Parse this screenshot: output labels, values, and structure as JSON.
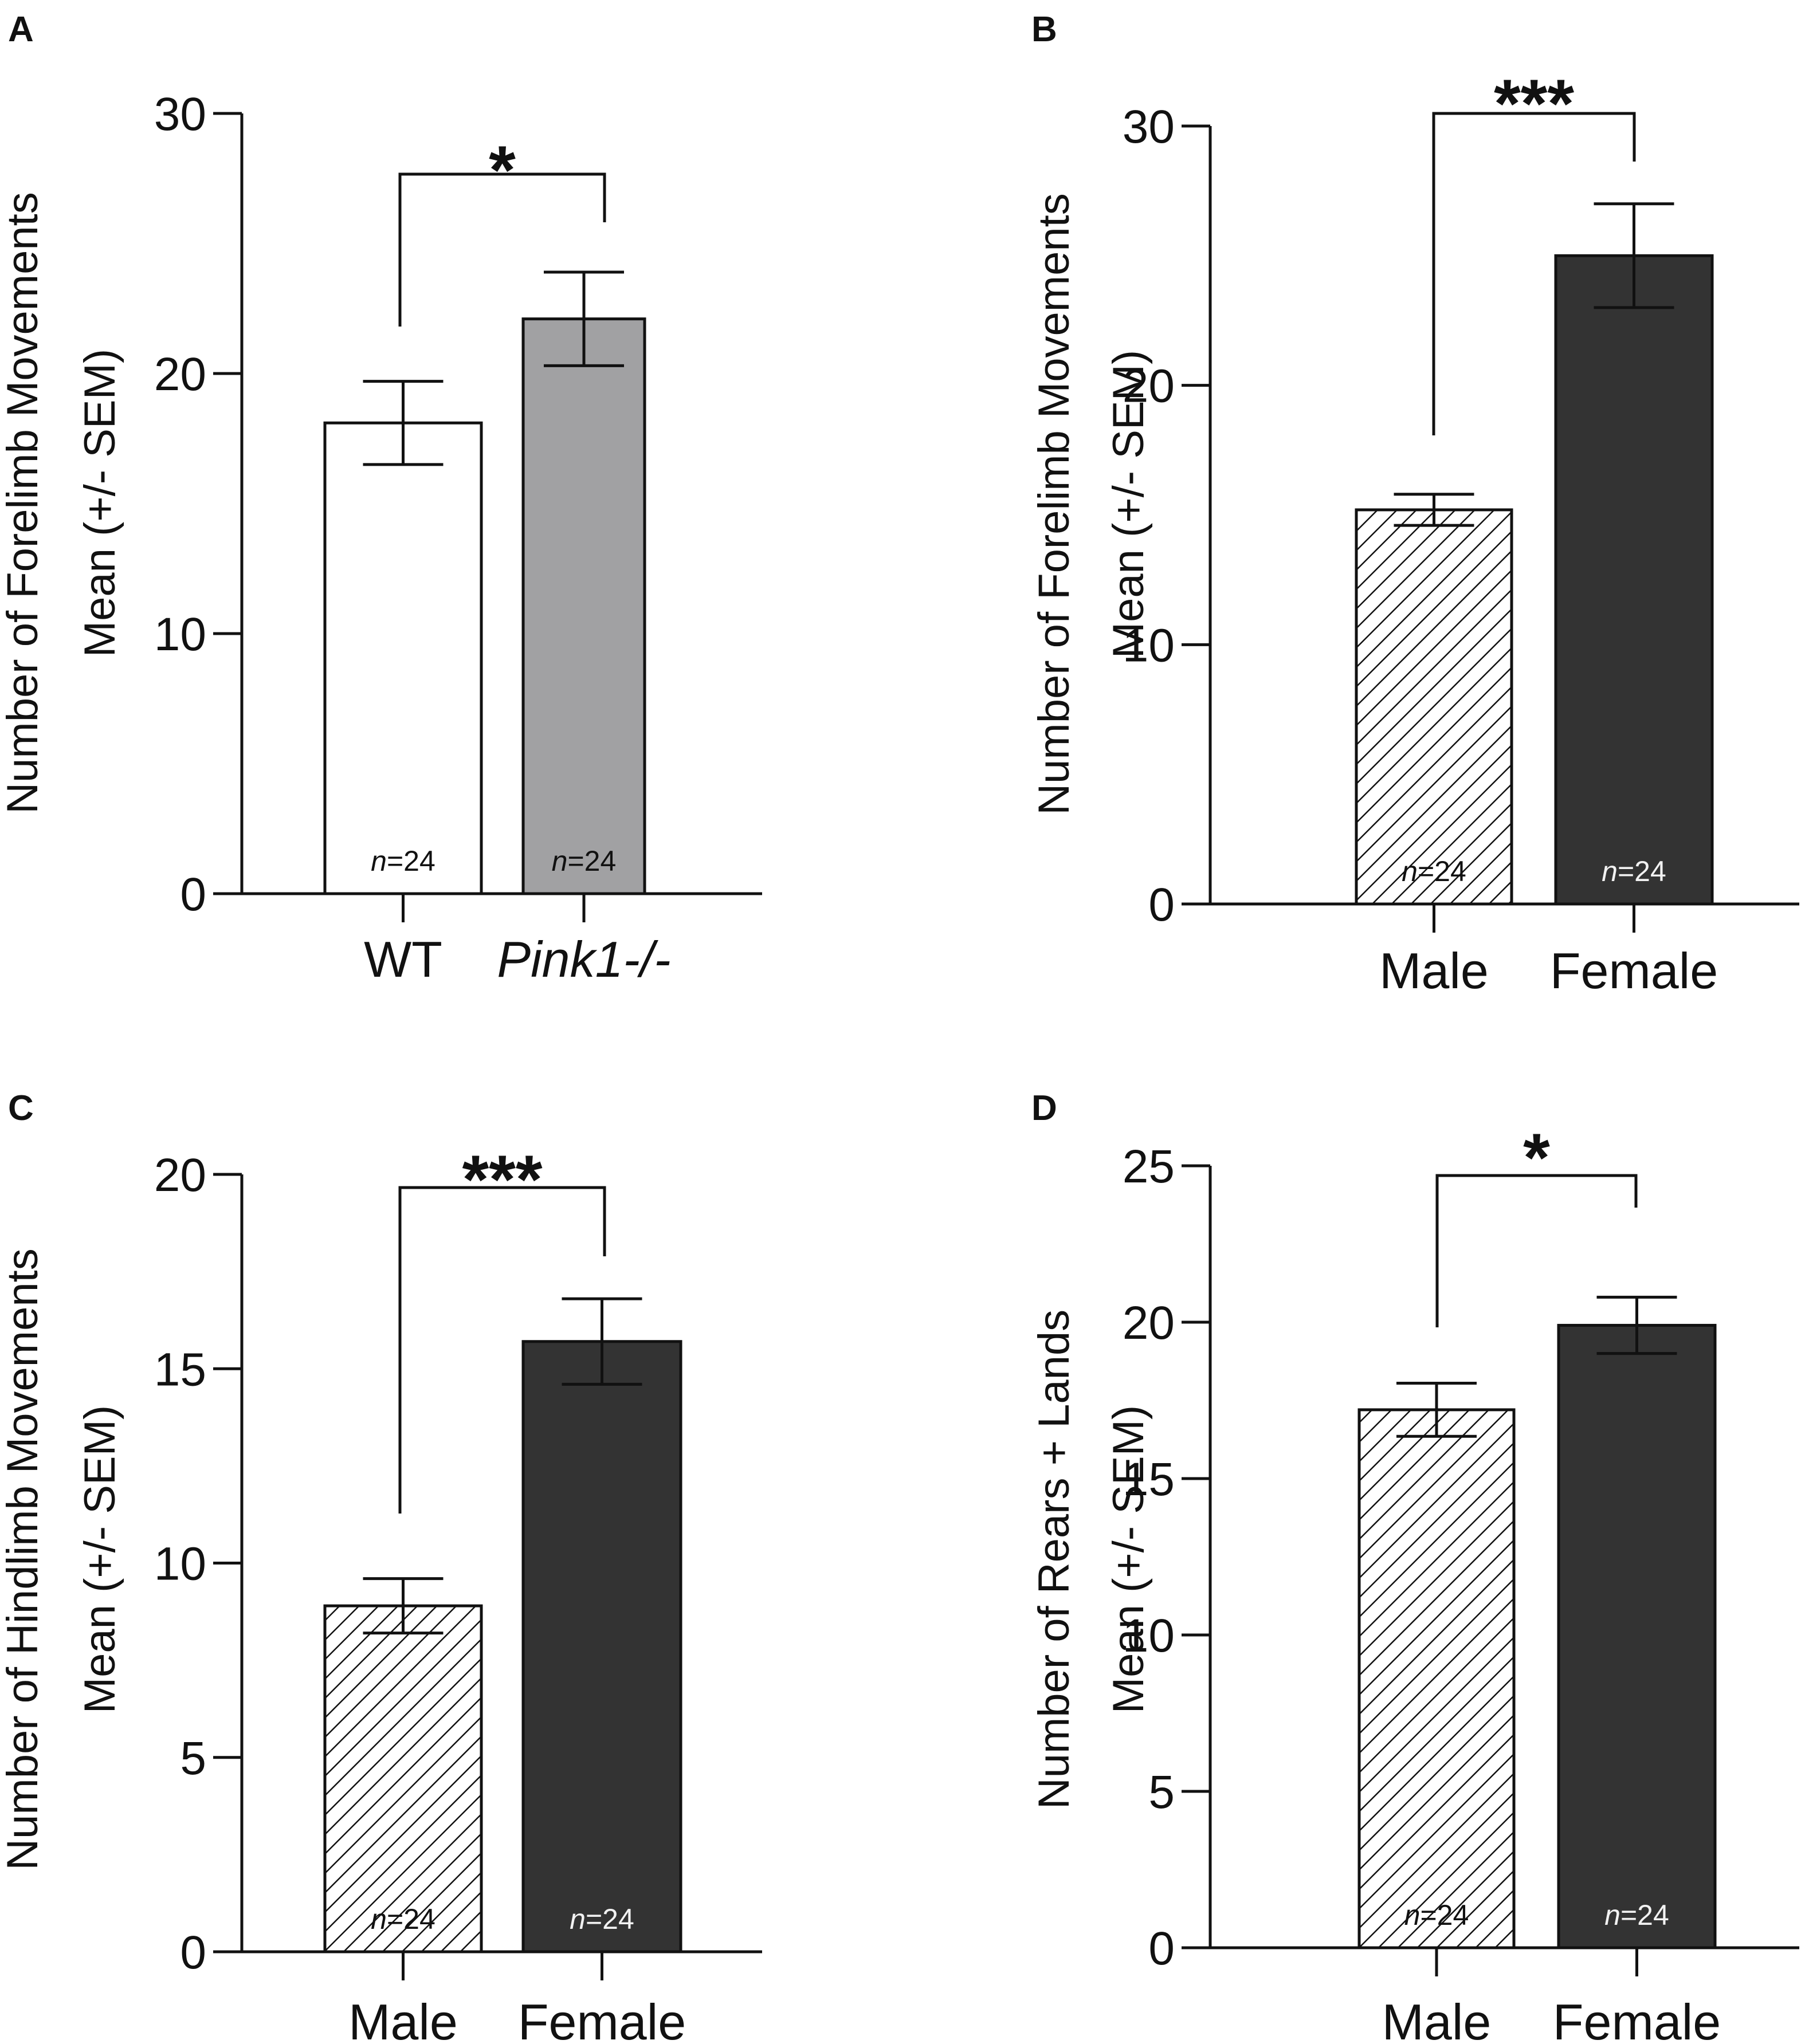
{
  "figure": {
    "colors": {
      "ink": "#111111",
      "wt": "#ffffff",
      "pink1": "#a1a1a3",
      "female": "#333333"
    }
  },
  "chart_data": [
    {
      "panel": "A",
      "type": "bar",
      "ylabel_lines": [
        "Number of Forelimb Movements",
        "Mean (+/- SEM)"
      ],
      "ylim": [
        0,
        30
      ],
      "yticks": [
        0,
        10,
        20,
        30
      ],
      "categories": [
        "WT",
        "Pink1-/-"
      ],
      "category_italic": [
        false,
        true
      ],
      "values": [
        18.1,
        22.1
      ],
      "sem": [
        1.6,
        1.8
      ],
      "n_labels": [
        "24",
        "24"
      ],
      "fills": [
        "white",
        "gray"
      ],
      "significance": "*"
    },
    {
      "panel": "B",
      "type": "bar",
      "ylabel_lines": [
        "Number of Forelimb Movements",
        "Mean (+/- SEM)"
      ],
      "ylim": [
        0,
        30
      ],
      "yticks": [
        0,
        10,
        20,
        30
      ],
      "categories": [
        "Male",
        "Female"
      ],
      "category_italic": [
        false,
        false
      ],
      "values": [
        15.2,
        25.0
      ],
      "sem": [
        0.6,
        2.0
      ],
      "n_labels": [
        "24",
        "24"
      ],
      "fills": [
        "hatch",
        "dark"
      ],
      "significance": "***"
    },
    {
      "panel": "C",
      "type": "bar",
      "ylabel_lines": [
        "Number of Hindlimb Movements",
        "Mean (+/- SEM)"
      ],
      "ylim": [
        0,
        20
      ],
      "yticks": [
        0,
        5,
        10,
        15,
        20
      ],
      "categories": [
        "Male",
        "Female"
      ],
      "category_italic": [
        false,
        false
      ],
      "values": [
        8.9,
        15.7
      ],
      "sem": [
        0.7,
        1.1
      ],
      "n_labels": [
        "24",
        "24"
      ],
      "fills": [
        "hatch",
        "dark"
      ],
      "significance": "***"
    },
    {
      "panel": "D",
      "type": "bar",
      "ylabel_lines": [
        "Number of Rears + Lands",
        "Mean (+/- SEM)"
      ],
      "ylim": [
        0,
        25
      ],
      "yticks": [
        0,
        5,
        10,
        15,
        20,
        25
      ],
      "categories": [
        "Male",
        "Female"
      ],
      "category_italic": [
        false,
        false
      ],
      "values": [
        17.2,
        19.9
      ],
      "sem": [
        0.85,
        0.9
      ],
      "n_labels": [
        "24",
        "24"
      ],
      "fills": [
        "hatch",
        "dark"
      ],
      "significance": "*"
    }
  ]
}
